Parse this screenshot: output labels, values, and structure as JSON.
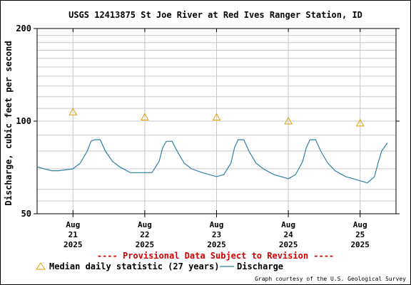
{
  "chart_data": {
    "type": "line",
    "title": "USGS 12413875 St Joe River at Red Ives Ranger Station, ID",
    "ylabel": "Discharge, cubic feet per second",
    "xlabel": "",
    "y_scale": "log",
    "ylim": [
      50,
      200
    ],
    "y_ticks": [
      50,
      100,
      200
    ],
    "x_ticks": [
      {
        "month": "Aug",
        "day": "21",
        "year": "2025"
      },
      {
        "month": "Aug",
        "day": "22",
        "year": "2025"
      },
      {
        "month": "Aug",
        "day": "23",
        "year": "2025"
      },
      {
        "month": "Aug",
        "day": "24",
        "year": "2025"
      },
      {
        "month": "Aug",
        "day": "25",
        "year": "2025"
      }
    ],
    "x_range_days": [
      20.5,
      25.5
    ],
    "grid": true,
    "legend_placement": "bottom",
    "discharge_color": "#2f7fa8",
    "median_color": "#e0a000",
    "series": [
      {
        "name": "Discharge",
        "x": [
          20.5,
          20.6,
          20.7,
          20.8,
          21.0,
          21.1,
          21.2,
          21.25,
          21.3,
          21.38,
          21.45,
          21.55,
          21.65,
          21.8,
          22.0,
          22.1,
          22.2,
          22.25,
          22.3,
          22.38,
          22.45,
          22.55,
          22.65,
          22.8,
          23.0,
          23.1,
          23.2,
          23.25,
          23.3,
          23.38,
          23.45,
          23.55,
          23.65,
          23.8,
          24.0,
          24.1,
          24.2,
          24.25,
          24.3,
          24.38,
          24.45,
          24.55,
          24.65,
          24.8,
          25.0,
          25.1,
          25.2,
          25.25,
          25.3,
          25.38
        ],
        "y": [
          71,
          70,
          69,
          69,
          70,
          73,
          80,
          86,
          87,
          87,
          80,
          74,
          71,
          68,
          68,
          68,
          74,
          82,
          86,
          86,
          80,
          73,
          70,
          68,
          66,
          67,
          73,
          82,
          87,
          87,
          80,
          73,
          70,
          67,
          65,
          67,
          74,
          82,
          87,
          87,
          80,
          73,
          69,
          66,
          64,
          63,
          66,
          73,
          80,
          85
        ]
      }
    ],
    "median": {
      "name": "Median daily statistic (27 years)",
      "x": [
        21,
        22,
        23,
        24,
        25
      ],
      "y": [
        107,
        103,
        103,
        100,
        98.5
      ]
    },
    "legend": {
      "median_label": "Median daily statistic (27 years)",
      "discharge_label": "Discharge"
    },
    "annotations": {
      "provisional": "---- Provisional Data Subject to Revision ----",
      "credit": "Graph courtesy of the U.S. Geological Survey"
    }
  }
}
